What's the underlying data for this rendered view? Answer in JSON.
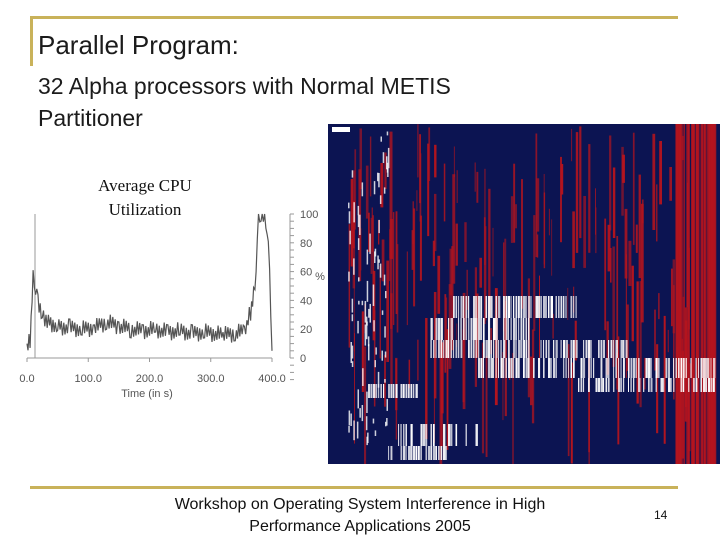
{
  "slide": {
    "title": "Parallel Program:",
    "subtitle": "32 Alpha processors  with Normal METIS Partitioner",
    "footer": "Workshop on Operating System Interference in High Performance Applications 2005",
    "page_number": "14"
  },
  "chart_data": [
    {
      "type": "line",
      "title": "Average CPU Utilization",
      "xlabel": "Time (in s)",
      "ylabel": "%",
      "x_ticks": [
        "0.0",
        "100.0",
        "200.0",
        "300.0",
        "400.0"
      ],
      "y_ticks": [
        "0",
        "20",
        "40",
        "60",
        "80",
        "100"
      ],
      "xlim": [
        0,
        400
      ],
      "ylim": [
        0,
        100
      ],
      "grid": false,
      "series": [
        {
          "color": "#555555",
          "x": [
            0,
            5,
            10,
            14,
            18,
            25,
            35,
            50,
            70,
            90,
            110,
            130,
            150,
            170,
            190,
            210,
            230,
            250,
            270,
            290,
            320,
            340,
            355,
            365,
            370,
            374,
            378,
            382,
            388,
            392,
            396,
            400
          ],
          "y": [
            8,
            12,
            58,
            50,
            40,
            30,
            25,
            22,
            21,
            20,
            21,
            25,
            22,
            20,
            19,
            20,
            18,
            19,
            17,
            18,
            16,
            17,
            19,
            32,
            45,
            62,
            95,
            98,
            96,
            90,
            60,
            5
          ]
        }
      ]
    },
    {
      "type": "heatmap",
      "colors": {
        "background": "#0c1452",
        "low": "#b4141e",
        "high": "#ffffff"
      }
    }
  ]
}
